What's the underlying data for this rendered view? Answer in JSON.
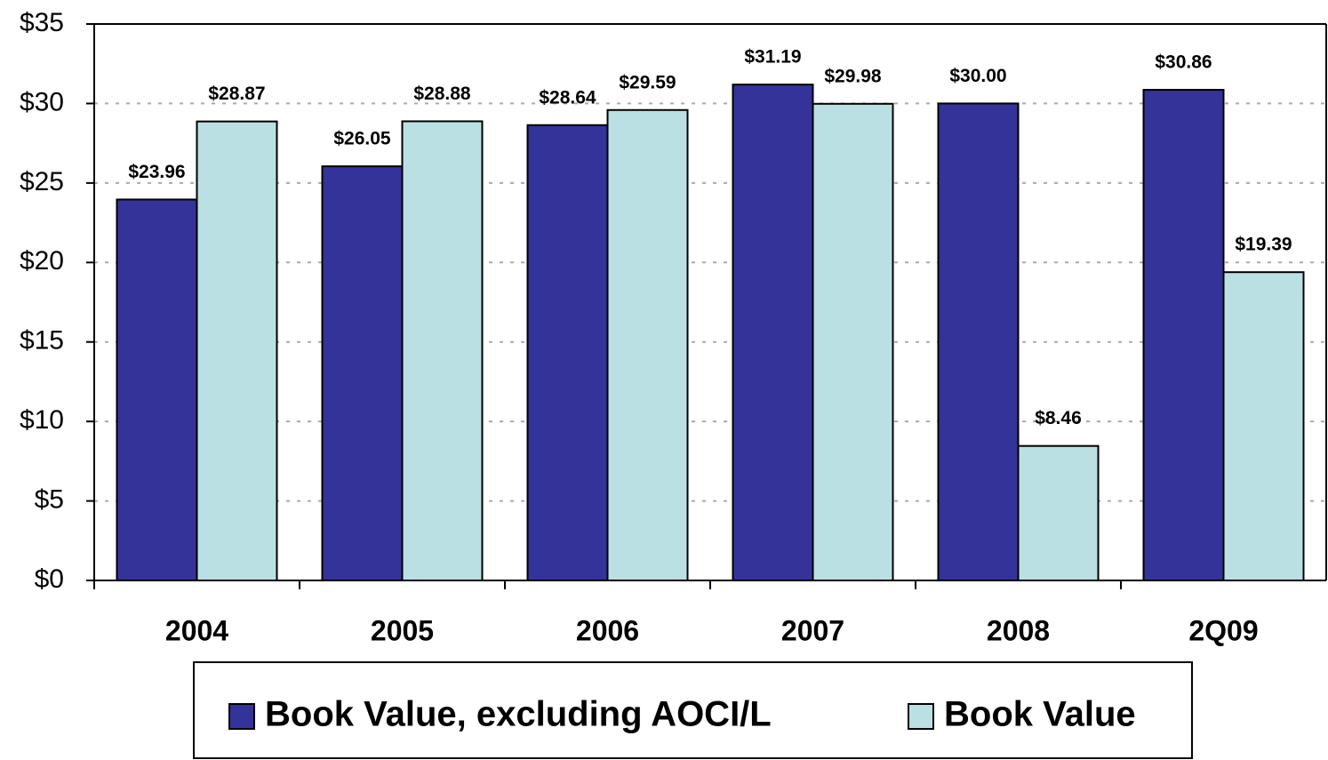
{
  "chart_data": {
    "type": "bar",
    "categories": [
      "2004",
      "2005",
      "2006",
      "2007",
      "2008",
      "2Q09"
    ],
    "series": [
      {
        "name": "Book Value, excluding AOCI/L",
        "color": "#333399",
        "values": [
          23.96,
          26.05,
          28.64,
          31.19,
          30.0,
          30.86
        ],
        "value_labels": [
          "$23.96",
          "$26.05",
          "$28.64",
          "$31.19",
          "$30.00",
          "$30.86"
        ]
      },
      {
        "name": "Book Value",
        "color": "#bbe0e3",
        "values": [
          28.87,
          28.88,
          29.59,
          29.98,
          8.46,
          19.39
        ],
        "value_labels": [
          "$28.87",
          "$28.88",
          "$29.59",
          "$29.98",
          "$8.46",
          "$19.39"
        ]
      }
    ],
    "ylim": [
      0,
      35
    ],
    "yticks": [
      {
        "value": 0,
        "label": "$0"
      },
      {
        "value": 5,
        "label": "$5"
      },
      {
        "value": 10,
        "label": "$10"
      },
      {
        "value": 15,
        "label": "$15"
      },
      {
        "value": 20,
        "label": "$20"
      },
      {
        "value": 25,
        "label": "$25"
      },
      {
        "value": 30,
        "label": "$30"
      },
      {
        "value": 35,
        "label": "$35"
      }
    ],
    "grid": true
  }
}
